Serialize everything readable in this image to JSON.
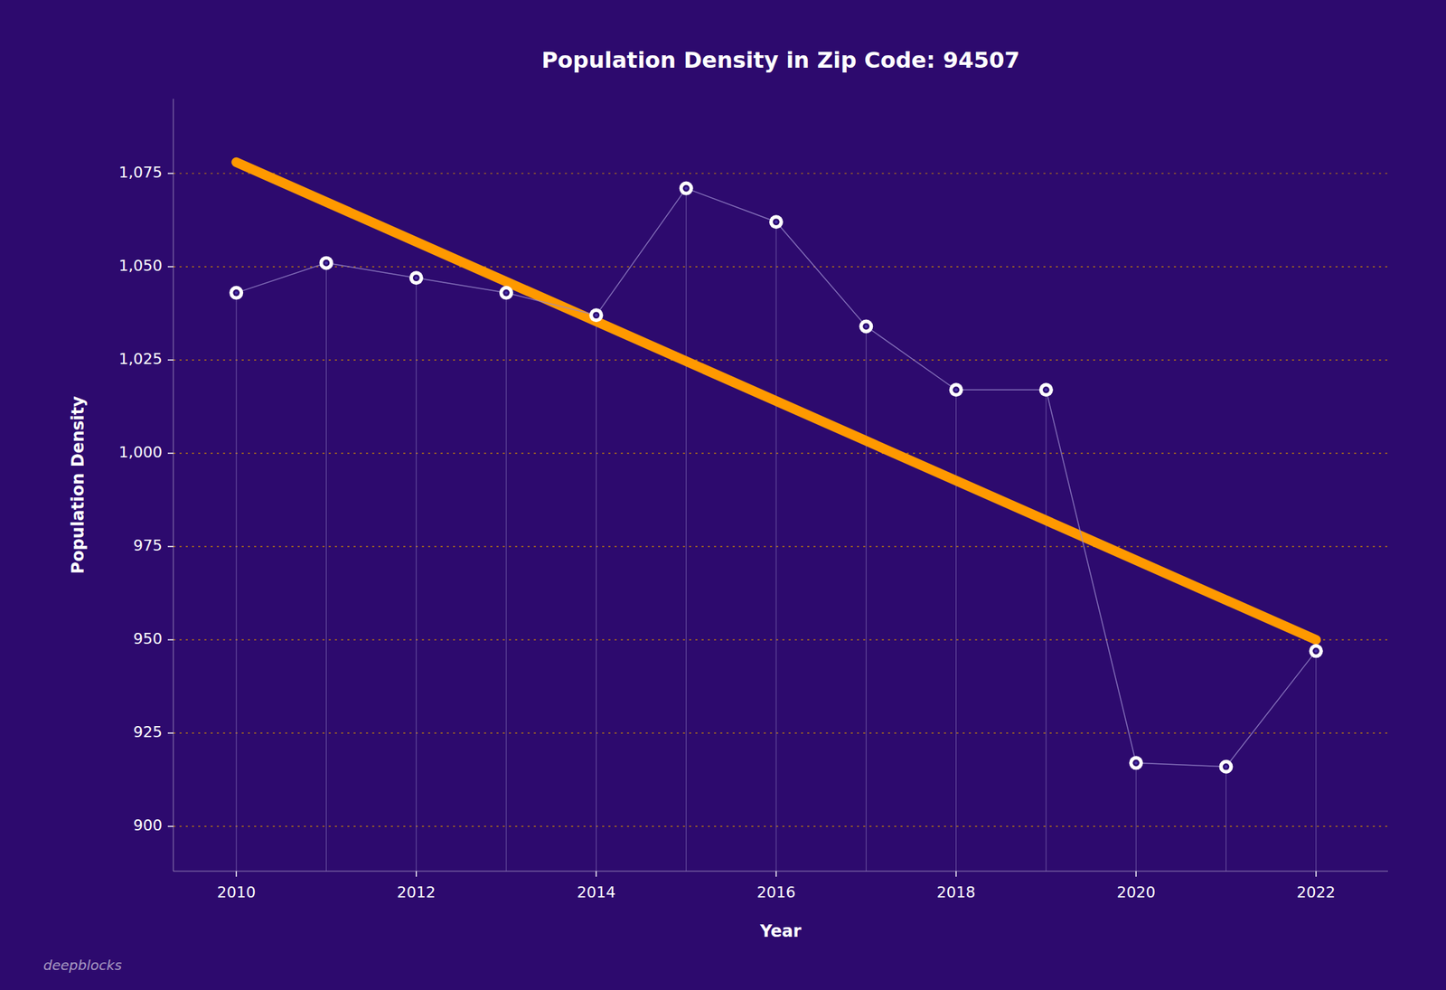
{
  "chart_data": {
    "type": "line",
    "title": "Population Density in Zip Code: 94507",
    "xlabel": "Year",
    "ylabel": "Population Density",
    "annotations": [
      "deepblocks"
    ],
    "x": [
      2010,
      2011,
      2012,
      2013,
      2014,
      2015,
      2016,
      2017,
      2018,
      2019,
      2020,
      2021,
      2022
    ],
    "series": [
      {
        "values": [
          1043,
          1051,
          1047,
          1043,
          1037,
          1071,
          1062,
          1034,
          1017,
          1017,
          917,
          916,
          947
        ],
        "color": "#9988cc",
        "marker": "circle"
      },
      {
        "x": [
          2010,
          2022
        ],
        "values": [
          1078,
          950
        ],
        "color": "#ff9900"
      }
    ],
    "xlim": [
      2009.3,
      2022.8
    ],
    "ylim": [
      888,
      1095
    ],
    "xticks": [
      2010,
      2012,
      2014,
      2016,
      2018,
      2020,
      2022
    ],
    "yticks": [
      900,
      925,
      950,
      975,
      {
        "value": 1000,
        "label": "1,000"
      },
      {
        "value": 1025,
        "label": "1,025"
      },
      {
        "value": 1050,
        "label": "1,050"
      },
      {
        "value": 1075,
        "label": "1,075"
      }
    ],
    "grid": true
  }
}
